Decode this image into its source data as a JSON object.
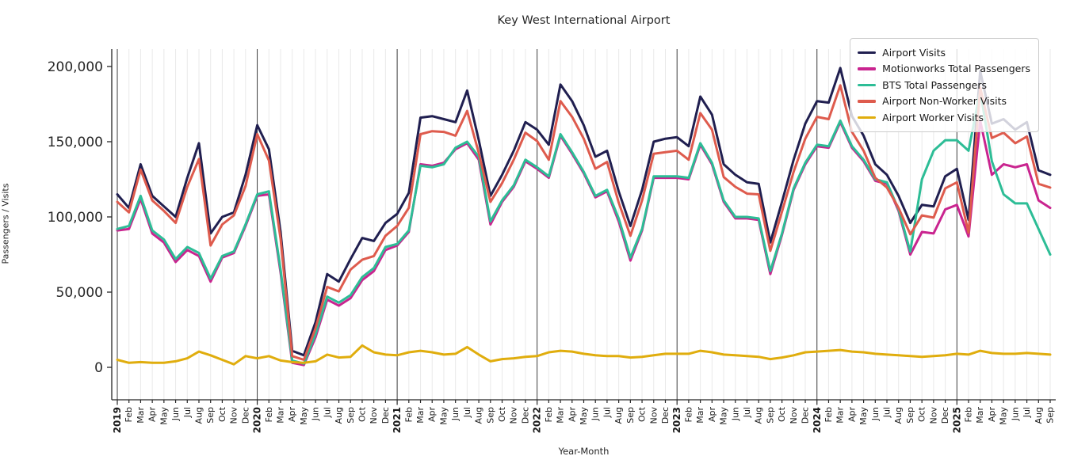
{
  "chart_data": {
    "type": "line",
    "title": "Key West International Airport",
    "xlabel": "Year-Month",
    "ylabel": "Passengers / Visits",
    "ylim": [
      0,
      211000
    ],
    "grid": "vertical-monthly, dark line at each January",
    "legend_position": "upper right",
    "y_ticks": [
      {
        "value": 0,
        "label": "0"
      },
      {
        "value": 50000,
        "label": "50,000"
      },
      {
        "value": 100000,
        "label": "100,000"
      },
      {
        "value": 150000,
        "label": "150,000"
      },
      {
        "value": 200000,
        "label": "200,000"
      }
    ],
    "x_tick_labels": [
      "2019",
      "Feb",
      "Mar",
      "Apr",
      "May",
      "Jun",
      "Jul",
      "Aug",
      "Sep",
      "Oct",
      "Nov",
      "Dec",
      "2020",
      "Feb",
      "Mar",
      "Apr",
      "May",
      "Jun",
      "Jul",
      "Aug",
      "Sep",
      "Oct",
      "Nov",
      "Dec",
      "2021",
      "Feb",
      "Mar",
      "Apr",
      "May",
      "Jun",
      "Jul",
      "Aug",
      "Sep",
      "Oct",
      "Nov",
      "Dec",
      "2022",
      "Feb",
      "Mar",
      "Apr",
      "May",
      "Jun",
      "Jul",
      "Aug",
      "Sep",
      "Oct",
      "Nov",
      "Dec",
      "2023",
      "Feb",
      "Mar",
      "Apr",
      "May",
      "Jun",
      "Jul",
      "Aug",
      "Sep",
      "Oct",
      "Nov",
      "Dec",
      "2024",
      "Feb",
      "Mar",
      "Apr",
      "May",
      "Jun",
      "Jul",
      "Aug",
      "Sep",
      "Oct",
      "Nov",
      "Dec",
      "2025",
      "Feb",
      "Mar",
      "Apr",
      "May",
      "Jun",
      "Jul",
      "Aug",
      "Sep"
    ],
    "series": [
      {
        "name": "Airport Visits",
        "color": "#201f50",
        "values": [
          115000,
          106000,
          135000,
          114000,
          107000,
          100000,
          126000,
          149000,
          89000,
          100000,
          103000,
          128000,
          161000,
          145000,
          90000,
          11000,
          8000,
          30000,
          62000,
          57000,
          72000,
          86000,
          84000,
          96000,
          102000,
          116000,
          166000,
          167000,
          165000,
          163000,
          184000,
          151000,
          114000,
          128000,
          144000,
          163000,
          158000,
          148000,
          188000,
          177000,
          161000,
          140000,
          144000,
          117000,
          94000,
          118000,
          150000,
          152000,
          153000,
          147000,
          180000,
          168000,
          135000,
          128000,
          123000,
          122000,
          83000,
          110000,
          138000,
          162000,
          177000,
          176000,
          199000,
          167000,
          154000,
          135000,
          128000,
          114000,
          96000,
          108000,
          107000,
          127000,
          132000,
          98000,
          197000,
          162000,
          165000,
          158000,
          163000,
          131000,
          128000
        ]
      },
      {
        "name": "Motionworks Total Passengers",
        "color": "#c9248f",
        "values": [
          91000,
          92000,
          112000,
          89000,
          83000,
          70000,
          78000,
          74000,
          57000,
          73000,
          76000,
          94000,
          114000,
          115000,
          63000,
          3000,
          1500,
          20000,
          45000,
          41000,
          46000,
          58000,
          64000,
          78000,
          81000,
          90000,
          135000,
          134000,
          136000,
          145000,
          149000,
          138000,
          95000,
          110000,
          120000,
          137000,
          132000,
          126000,
          154000,
          142000,
          129000,
          113000,
          117000,
          97000,
          71000,
          91000,
          126000,
          126000,
          126000,
          125000,
          148000,
          135000,
          110000,
          99000,
          99000,
          98000,
          62000,
          88000,
          118000,
          135000,
          147000,
          146000,
          163000,
          146000,
          137000,
          124000,
          122000,
          104000,
          75000,
          90000,
          89000,
          105000,
          108000,
          87000,
          164000,
          128000,
          135000,
          133000,
          135000,
          111000,
          106000
        ]
      },
      {
        "name": "BTS Total Passengers",
        "color": "#2dbd96",
        "values": [
          92000,
          94000,
          114000,
          91000,
          85000,
          72000,
          80000,
          76000,
          59000,
          74000,
          77000,
          95000,
          115000,
          117000,
          65000,
          4500,
          2500,
          22000,
          47000,
          43000,
          48000,
          60000,
          66000,
          80000,
          82000,
          91000,
          134000,
          133000,
          135000,
          146000,
          150000,
          140000,
          97000,
          111000,
          121000,
          138000,
          133000,
          127000,
          155000,
          143000,
          130000,
          114000,
          118000,
          99000,
          73000,
          92000,
          127000,
          127000,
          127000,
          126000,
          149000,
          136000,
          111000,
          100000,
          100000,
          99000,
          64000,
          89000,
          119000,
          136000,
          148000,
          147000,
          164000,
          147000,
          138000,
          125000,
          123000,
          105000,
          77000,
          125000,
          144000,
          151000,
          151000,
          144000,
          184000,
          137000,
          115000,
          109000,
          109000,
          92000,
          75000
        ]
      },
      {
        "name": "Airport Non-Worker Visits",
        "color": "#de5b4d",
        "values": [
          110000,
          103000,
          131500,
          111000,
          104000,
          96000,
          120000,
          138500,
          81000,
          95000,
          101000,
          120500,
          155000,
          137500,
          85500,
          7500,
          5000,
          26000,
          53500,
          50500,
          65000,
          71500,
          74000,
          87500,
          94000,
          106000,
          155000,
          157000,
          156500,
          154000,
          170500,
          142500,
          110000,
          122500,
          138000,
          156000,
          150500,
          138000,
          177000,
          166500,
          152000,
          132000,
          136500,
          109500,
          87500,
          111000,
          142000,
          143000,
          144000,
          138000,
          169000,
          158000,
          126500,
          120000,
          115500,
          115000,
          77500,
          103500,
          130000,
          152000,
          166500,
          165000,
          187500,
          156500,
          144000,
          126000,
          119500,
          106000,
          88500,
          101000,
          99500,
          119000,
          123000,
          89500,
          186000,
          152500,
          156000,
          149000,
          153500,
          122000,
          119500
        ]
      },
      {
        "name": "Airport Worker Visits",
        "color": "#e0ad0d",
        "values": [
          5000,
          3000,
          3500,
          3000,
          3000,
          4000,
          6000,
          10500,
          8000,
          5000,
          2000,
          7500,
          6000,
          7500,
          4500,
          3500,
          3000,
          4000,
          8500,
          6500,
          7000,
          14500,
          10000,
          8500,
          8000,
          10000,
          11000,
          10000,
          8500,
          9000,
          13500,
          8500,
          4000,
          5500,
          6000,
          7000,
          7500,
          10000,
          11000,
          10500,
          9000,
          8000,
          7500,
          7500,
          6500,
          7000,
          8000,
          9000,
          9000,
          9000,
          11000,
          10000,
          8500,
          8000,
          7500,
          7000,
          5500,
          6500,
          8000,
          10000,
          10500,
          11000,
          11500,
          10500,
          10000,
          9000,
          8500,
          8000,
          7500,
          7000,
          7500,
          8000,
          9000,
          8500,
          11000,
          9500,
          9000,
          9000,
          9500,
          9000,
          8500
        ]
      }
    ]
  }
}
